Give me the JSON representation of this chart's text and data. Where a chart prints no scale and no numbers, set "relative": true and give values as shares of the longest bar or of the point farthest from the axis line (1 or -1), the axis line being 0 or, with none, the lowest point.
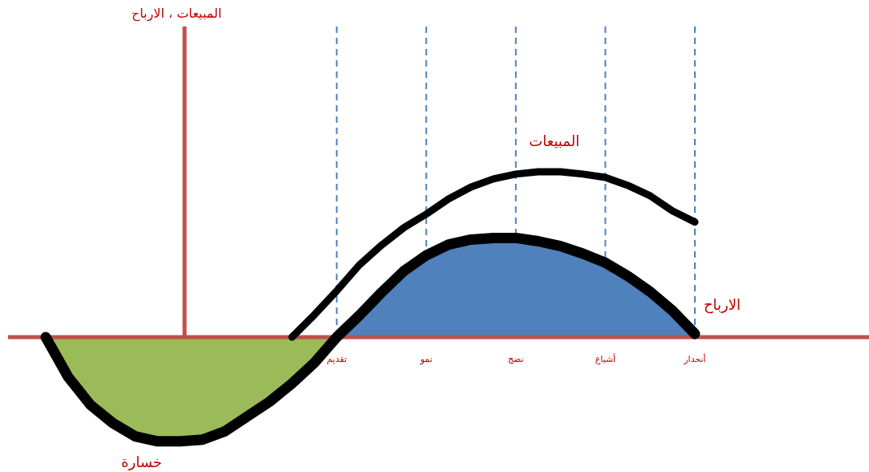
{
  "chart_data": {
    "type": "line",
    "relative": true,
    "annotations": [
      "المبيعات ، الارباح"
    ],
    "grid": "x",
    "categories": [
      null,
      null,
      null,
      null,
      null,
      null,
      null,
      null,
      null,
      null,
      null,
      null,
      null,
      "تقديم",
      null,
      null,
      null,
      "نمو",
      null,
      null,
      null,
      "نضج",
      null,
      null,
      null,
      "أشباع",
      null,
      null,
      null,
      "أنحدار"
    ],
    "series": [
      {
        "type": "area",
        "name": "خسارة",
        "color": "#9bbb59",
        "values": [
          0,
          -0.24,
          -0.41,
          -0.52,
          -0.6,
          -0.63,
          -0.63,
          -0.62,
          -0.57,
          -0.48,
          -0.39,
          -0.28,
          -0.155,
          0,
          null,
          null,
          null,
          null,
          null,
          null,
          null,
          null,
          null,
          null,
          null,
          null,
          null,
          null,
          null,
          null
        ]
      },
      {
        "type": "area",
        "color": "#4f81bd",
        "values": [
          null,
          null,
          null,
          null,
          null,
          null,
          null,
          null,
          null,
          null,
          null,
          null,
          null,
          0,
          0.13,
          0.27,
          0.4,
          0.495,
          0.56,
          0.59,
          0.6,
          0.6,
          0.58,
          0.55,
          0.505,
          0.45,
          0.37,
          0.275,
          0.16,
          0.02
        ]
      },
      {
        "type": "line",
        "name": "المبيعات",
        "color": "#000000",
        "values": [
          null,
          null,
          null,
          null,
          null,
          null,
          null,
          null,
          null,
          null,
          null,
          0,
          0.135,
          0.28,
          0.435,
          0.556,
          0.662,
          0.744,
          0.836,
          0.908,
          0.957,
          0.986,
          1,
          1,
          0.986,
          0.966,
          0.918,
          0.855,
          0.763,
          0.696
        ]
      },
      {
        "type": "line",
        "name": "الارباح",
        "color": "#000000",
        "values": [
          0,
          -0.24,
          -0.41,
          -0.52,
          -0.6,
          -0.63,
          -0.63,
          -0.62,
          -0.57,
          -0.48,
          -0.39,
          -0.28,
          -0.155,
          0,
          0.13,
          0.27,
          0.4,
          0.495,
          0.56,
          0.59,
          0.6,
          0.6,
          0.58,
          0.55,
          0.505,
          0.45,
          0.37,
          0.275,
          0.16,
          0.02
        ]
      }
    ]
  }
}
